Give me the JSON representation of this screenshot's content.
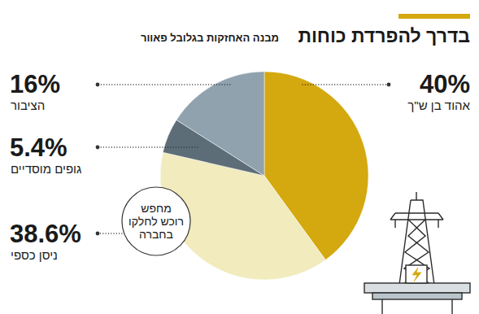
{
  "chart_data": {
    "type": "pie",
    "title": "בדרך להפרדת כוחות",
    "subtitle": "מבנה האחזקות בגלובל פאוור",
    "categories": [
      "אהוד בן ש\"ך",
      "ניסן כספי",
      "גופים מוסדיים",
      "הציבור"
    ],
    "values": [
      40,
      38.6,
      5.4,
      16
    ],
    "value_labels": [
      "40%",
      "38.6%",
      "5.4%",
      "16%"
    ],
    "colors": [
      "#d4a80f",
      "#f1ebbd",
      "#5d6d77",
      "#8fa2ae"
    ],
    "data_labels": true,
    "annotation": [
      "מחפש",
      "רוכש לחלקו",
      "בחברה"
    ]
  }
}
